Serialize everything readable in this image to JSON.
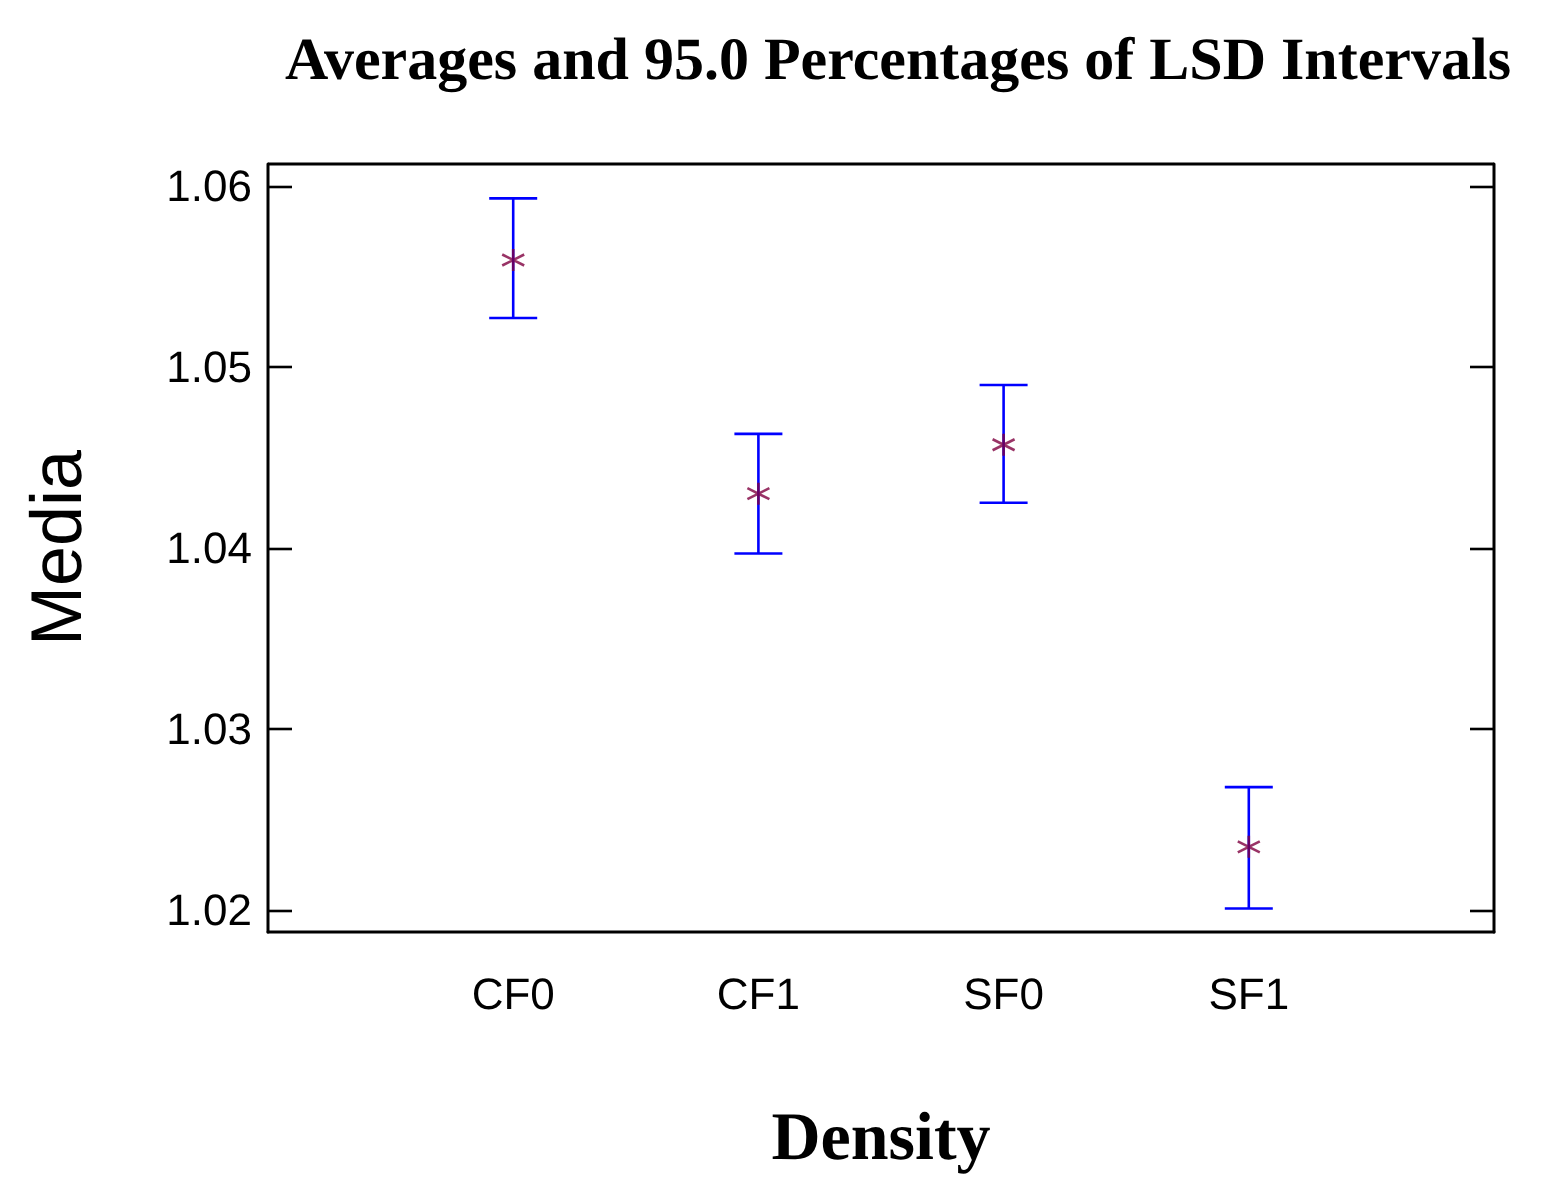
{
  "chart_data": {
    "type": "scatter",
    "title": "Averages and 95.0 Percentages of LSD Intervals",
    "xlabel": "Density",
    "ylabel": "Media",
    "categories": [
      "CF0",
      "CF1",
      "SF0",
      "SF1"
    ],
    "series": [
      {
        "color": "#800040",
        "values": [
          1.0559,
          1.043,
          1.0457,
          1.0235
        ],
        "errors": [
          [
            1.0527,
            1.0593
          ],
          [
            1.0397,
            1.0463
          ],
          [
            1.0425,
            1.049
          ],
          [
            1.0201,
            1.0268
          ]
        ]
      }
    ],
    "ylim": [
      1.0188,
      1.0612
    ],
    "yticks": [
      {
        "value": 1.02,
        "label": "1.02"
      },
      {
        "value": 1.03,
        "label": "1.03"
      },
      {
        "value": 1.04,
        "label": "1.04"
      },
      {
        "value": 1.05,
        "label": "1.05"
      },
      {
        "value": 1.06,
        "label": "1.06"
      }
    ],
    "marker": "cross",
    "grid": false
  }
}
